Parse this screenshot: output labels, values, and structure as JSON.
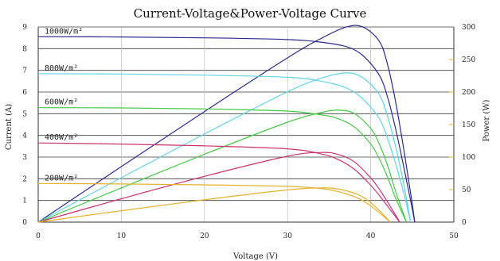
{
  "chart_data": {
    "type": "line",
    "title": "Current-Voltage&Power-Voltage Curve",
    "xlabel": "Voltage (V)",
    "ylabel_left": "Current (A)",
    "ylabel_right": "Power (W)",
    "xlim": [
      0,
      50
    ],
    "ylim_left": [
      0,
      9
    ],
    "ylim_right": [
      0,
      300
    ],
    "x_ticks": [
      "0",
      "10",
      "20",
      "30",
      "40",
      "50"
    ],
    "y_left_ticks": [
      "0",
      "1",
      "2",
      "3",
      "4",
      "5",
      "6",
      "7",
      "8",
      "9"
    ],
    "y_right_ticks": [
      "0",
      "50",
      "100",
      "150",
      "200",
      "250",
      "300"
    ],
    "grid": true,
    "series": [
      {
        "name": "1000W/m²",
        "color": "#2b2b8f",
        "voc": 45.3,
        "current": [
          [
            0,
            8.55
          ],
          [
            10,
            8.54
          ],
          [
            20,
            8.5
          ],
          [
            30,
            8.42
          ],
          [
            34,
            8.3
          ],
          [
            37,
            8.1
          ],
          [
            39,
            7.7
          ],
          [
            41,
            6.8
          ],
          [
            42,
            5.8
          ],
          [
            43,
            4.3
          ],
          [
            44,
            2.5
          ],
          [
            44.8,
            1.0
          ],
          [
            45.3,
            0
          ]
        ],
        "power": [
          [
            0,
            0
          ],
          [
            10,
            85.4
          ],
          [
            20,
            170
          ],
          [
            30,
            252.6
          ],
          [
            34,
            282.2
          ],
          [
            37,
            299.7
          ],
          [
            39,
            300.3
          ],
          [
            41,
            278.8
          ],
          [
            42,
            243.6
          ],
          [
            43,
            184.9
          ],
          [
            44,
            110
          ],
          [
            44.8,
            44.8
          ],
          [
            45.3,
            0
          ]
        ]
      },
      {
        "name": "800W/m²",
        "color": "#5fd3e8",
        "voc": 44.8,
        "current": [
          [
            0,
            6.85
          ],
          [
            10,
            6.83
          ],
          [
            20,
            6.78
          ],
          [
            30,
            6.68
          ],
          [
            34,
            6.5
          ],
          [
            37,
            6.2
          ],
          [
            39,
            5.7
          ],
          [
            41,
            4.8
          ],
          [
            42,
            3.9
          ],
          [
            43,
            2.7
          ],
          [
            44,
            1.3
          ],
          [
            44.8,
            0
          ]
        ],
        "power": [
          [
            0,
            0
          ],
          [
            10,
            68.3
          ],
          [
            20,
            135.6
          ],
          [
            30,
            200.4
          ],
          [
            34,
            221
          ],
          [
            37,
            229.4
          ],
          [
            39,
            222.3
          ],
          [
            41,
            196.8
          ],
          [
            42,
            163.8
          ],
          [
            43,
            116.1
          ],
          [
            44,
            57.2
          ],
          [
            44.8,
            0
          ]
        ]
      },
      {
        "name": "600W/m²",
        "color": "#44c944",
        "voc": 44.3,
        "current": [
          [
            0,
            5.28
          ],
          [
            10,
            5.27
          ],
          [
            20,
            5.22
          ],
          [
            30,
            5.12
          ],
          [
            34,
            4.95
          ],
          [
            36,
            4.78
          ],
          [
            38,
            4.4
          ],
          [
            40,
            3.6
          ],
          [
            41,
            2.95
          ],
          [
            42,
            2.1
          ],
          [
            43,
            1.1
          ],
          [
            44.3,
            0
          ]
        ],
        "power": [
          [
            0,
            0
          ],
          [
            10,
            52.7
          ],
          [
            20,
            104.4
          ],
          [
            30,
            153.6
          ],
          [
            34,
            168.3
          ],
          [
            36,
            172.1
          ],
          [
            38,
            167.2
          ],
          [
            40,
            144
          ],
          [
            41,
            121
          ],
          [
            42,
            88.2
          ],
          [
            43,
            47.3
          ],
          [
            44.3,
            0
          ]
        ]
      },
      {
        "name": "400W/m²",
        "color": "#c8326e",
        "voc": 43.5,
        "current": [
          [
            0,
            3.65
          ],
          [
            10,
            3.6
          ],
          [
            20,
            3.52
          ],
          [
            30,
            3.38
          ],
          [
            34,
            3.15
          ],
          [
            36,
            2.9
          ],
          [
            38,
            2.45
          ],
          [
            40,
            1.7
          ],
          [
            41,
            1.25
          ],
          [
            42,
            0.75
          ],
          [
            43,
            0.25
          ],
          [
            43.5,
            0
          ]
        ],
        "power": [
          [
            0,
            0
          ],
          [
            10,
            36
          ],
          [
            20,
            70.4
          ],
          [
            30,
            101.4
          ],
          [
            34,
            107.1
          ],
          [
            36,
            104.4
          ],
          [
            38,
            93.1
          ],
          [
            40,
            68
          ],
          [
            41,
            51.3
          ],
          [
            42,
            31.5
          ],
          [
            43,
            10.8
          ],
          [
            43.5,
            0
          ]
        ]
      },
      {
        "name": "200W/m²",
        "color": "#e3b12c",
        "voc": 42.3,
        "current": [
          [
            0,
            1.78
          ],
          [
            10,
            1.76
          ],
          [
            20,
            1.72
          ],
          [
            30,
            1.65
          ],
          [
            34,
            1.55
          ],
          [
            36,
            1.42
          ],
          [
            38,
            1.18
          ],
          [
            39,
            1.0
          ],
          [
            40,
            0.75
          ],
          [
            41,
            0.45
          ],
          [
            42,
            0.12
          ],
          [
            42.3,
            0
          ]
        ],
        "power": [
          [
            0,
            0
          ],
          [
            10,
            17.6
          ],
          [
            20,
            34.4
          ],
          [
            30,
            49.5
          ],
          [
            34,
            52.7
          ],
          [
            36,
            51.1
          ],
          [
            38,
            44.8
          ],
          [
            39,
            39
          ],
          [
            40,
            30
          ],
          [
            41,
            18.5
          ],
          [
            42,
            5
          ],
          [
            42.3,
            0
          ]
        ]
      }
    ]
  }
}
